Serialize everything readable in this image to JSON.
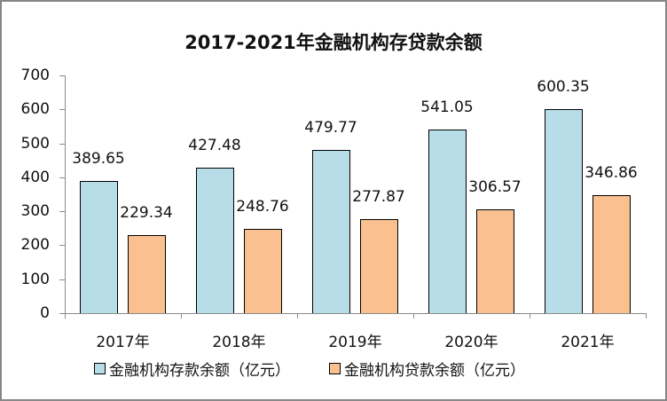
{
  "chart_data": {
    "type": "bar",
    "title": "2017-2021年金融机构存贷款余额",
    "categories": [
      "2017年",
      "2018年",
      "2019年",
      "2020年",
      "2021年"
    ],
    "series": [
      {
        "name": "金融机构存款余额（亿元）",
        "color": "#b7dde8",
        "values": [
          389.65,
          427.48,
          479.77,
          541.05,
          600.35
        ]
      },
      {
        "name": "金融机构贷款余额（亿元）",
        "color": "#fac090",
        "values": [
          229.34,
          248.76,
          277.87,
          306.57,
          346.86
        ]
      }
    ],
    "labels": [
      [
        "389.65",
        "427.48",
        "479.77",
        "541.05",
        "600.35"
      ],
      [
        "229.34",
        "248.76",
        "277.87",
        "306.57",
        "346.86"
      ]
    ],
    "yticks": [
      "0",
      "100",
      "200",
      "300",
      "400",
      "500",
      "600",
      "700"
    ],
    "xlabel": "",
    "ylabel": "",
    "ylim": [
      0,
      700
    ],
    "grid": false,
    "legend_position": "bottom"
  }
}
